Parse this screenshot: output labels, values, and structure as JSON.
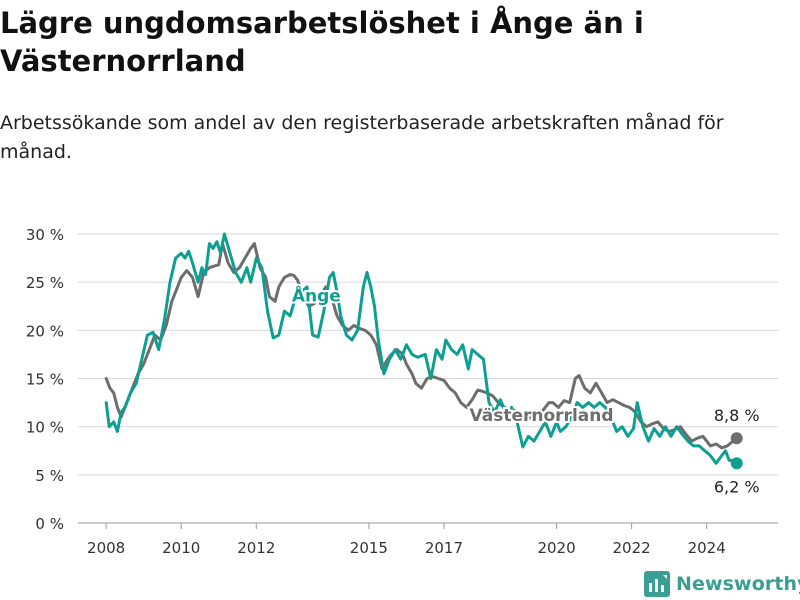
{
  "title": "Lägre ungdomsarbetslöshet i Ånge än i Västernorrland",
  "subtitle": "Arbetssökande som andel av den registerbaserade arbetskraften månad för månad.",
  "brand": "Newsworthy",
  "colors": {
    "ange": "#0e9f93",
    "vasternorrland": "#6d6d6d",
    "grid": "#d9d9d9",
    "brand": "#3a9e94"
  },
  "chart_data": {
    "type": "line",
    "title": "Lägre ungdomsarbetslöshet i Ånge än i Västernorrland",
    "subtitle": "Arbetssökande som andel av den registerbaserade arbetskraften månad för månad.",
    "y_unit": "%",
    "ylim": [
      0,
      30
    ],
    "y_ticks": [
      0,
      5,
      10,
      15,
      20,
      25,
      30
    ],
    "y_tick_labels": [
      "0 %",
      "5 %",
      "10 %",
      "15 %",
      "20 %",
      "25 %",
      "30 %"
    ],
    "x_ticks": [
      2008,
      2010,
      2012,
      2015,
      2017,
      2020,
      2022,
      2024
    ],
    "xlim": [
      2007.25,
      2025.9
    ],
    "grid": true,
    "legend": "inline labels",
    "end_labels": [
      "8,8 %",
      "6,2 %"
    ],
    "series": [
      {
        "name": "Västernorrland",
        "color": "#6d6d6d",
        "points": [
          [
            2008.0,
            15.0
          ],
          [
            2008.1,
            14.0
          ],
          [
            2008.2,
            13.5
          ],
          [
            2008.3,
            12.0
          ],
          [
            2008.4,
            11.0
          ],
          [
            2008.55,
            12.5
          ],
          [
            2008.7,
            14.0
          ],
          [
            2008.85,
            15.5
          ],
          [
            2009.0,
            16.5
          ],
          [
            2009.15,
            18.0
          ],
          [
            2009.3,
            19.5
          ],
          [
            2009.45,
            19.0
          ],
          [
            2009.6,
            20.5
          ],
          [
            2009.75,
            23.0
          ],
          [
            2009.9,
            24.5
          ],
          [
            2010.0,
            25.5
          ],
          [
            2010.15,
            26.2
          ],
          [
            2010.3,
            25.5
          ],
          [
            2010.45,
            23.5
          ],
          [
            2010.6,
            26.0
          ],
          [
            2010.75,
            26.5
          ],
          [
            2010.9,
            26.7
          ],
          [
            2011.0,
            26.8
          ],
          [
            2011.1,
            29.0
          ],
          [
            2011.25,
            27.0
          ],
          [
            2011.4,
            26.0
          ],
          [
            2011.55,
            26.5
          ],
          [
            2011.7,
            27.5
          ],
          [
            2011.85,
            28.5
          ],
          [
            2011.95,
            29.0
          ],
          [
            2012.1,
            26.5
          ],
          [
            2012.25,
            25.5
          ],
          [
            2012.35,
            23.5
          ],
          [
            2012.5,
            23.0
          ],
          [
            2012.6,
            24.5
          ],
          [
            2012.75,
            25.5
          ],
          [
            2012.9,
            25.8
          ],
          [
            2013.0,
            25.7
          ],
          [
            2013.1,
            25.2
          ],
          [
            2013.25,
            23.5
          ],
          [
            2013.4,
            22.5
          ],
          [
            2013.55,
            22.8
          ],
          [
            2013.7,
            23.5
          ],
          [
            2013.85,
            24.5
          ],
          [
            2014.0,
            23.5
          ],
          [
            2014.15,
            21.5
          ],
          [
            2014.3,
            20.5
          ],
          [
            2014.45,
            20.0
          ],
          [
            2014.6,
            20.5
          ],
          [
            2014.75,
            20.2
          ],
          [
            2014.9,
            20.0
          ],
          [
            2015.05,
            19.5
          ],
          [
            2015.2,
            18.5
          ],
          [
            2015.35,
            16.0
          ],
          [
            2015.5,
            17.0
          ],
          [
            2015.6,
            17.5
          ],
          [
            2015.75,
            18.0
          ],
          [
            2015.9,
            17.5
          ],
          [
            2016.0,
            16.5
          ],
          [
            2016.15,
            15.5
          ],
          [
            2016.25,
            14.5
          ],
          [
            2016.4,
            14.0
          ],
          [
            2016.55,
            15.0
          ],
          [
            2016.7,
            15.2
          ],
          [
            2016.85,
            15.0
          ],
          [
            2017.0,
            14.8
          ],
          [
            2017.15,
            14.0
          ],
          [
            2017.3,
            13.5
          ],
          [
            2017.45,
            12.5
          ],
          [
            2017.6,
            12.0
          ],
          [
            2017.75,
            12.8
          ],
          [
            2017.9,
            13.8
          ],
          [
            2018.0,
            13.7
          ],
          [
            2018.15,
            13.5
          ],
          [
            2018.3,
            13.2
          ],
          [
            2018.45,
            12.5
          ],
          [
            2018.6,
            12.0
          ],
          [
            2018.8,
            11.8
          ],
          [
            2019.0,
            11.5
          ],
          [
            2019.2,
            11.0
          ],
          [
            2019.4,
            10.8
          ],
          [
            2019.6,
            11.5
          ],
          [
            2019.8,
            12.5
          ],
          [
            2019.9,
            12.5
          ],
          [
            2020.05,
            12.0
          ],
          [
            2020.2,
            12.7
          ],
          [
            2020.35,
            12.5
          ],
          [
            2020.5,
            15.0
          ],
          [
            2020.6,
            15.3
          ],
          [
            2020.75,
            14.0
          ],
          [
            2020.9,
            13.5
          ],
          [
            2021.05,
            14.5
          ],
          [
            2021.2,
            13.5
          ],
          [
            2021.35,
            12.5
          ],
          [
            2021.5,
            12.8
          ],
          [
            2021.65,
            12.5
          ],
          [
            2021.8,
            12.2
          ],
          [
            2021.95,
            12.0
          ],
          [
            2022.1,
            11.5
          ],
          [
            2022.25,
            10.5
          ],
          [
            2022.4,
            10.0
          ],
          [
            2022.55,
            10.3
          ],
          [
            2022.7,
            10.5
          ],
          [
            2022.85,
            9.8
          ],
          [
            2023.0,
            9.5
          ],
          [
            2023.15,
            9.7
          ],
          [
            2023.3,
            10.0
          ],
          [
            2023.45,
            9.2
          ],
          [
            2023.6,
            8.5
          ],
          [
            2023.75,
            8.8
          ],
          [
            2023.9,
            9.0
          ],
          [
            2024.0,
            8.5
          ],
          [
            2024.1,
            8.0
          ],
          [
            2024.25,
            8.2
          ],
          [
            2024.4,
            7.8
          ],
          [
            2024.55,
            8.0
          ],
          [
            2024.7,
            8.5
          ],
          [
            2024.8,
            8.8
          ]
        ]
      },
      {
        "name": "Ånge",
        "color": "#0e9f93",
        "points": [
          [
            2008.0,
            12.5
          ],
          [
            2008.08,
            10.0
          ],
          [
            2008.2,
            10.5
          ],
          [
            2008.3,
            9.5
          ],
          [
            2008.4,
            11.5
          ],
          [
            2008.5,
            12.0
          ],
          [
            2008.65,
            13.5
          ],
          [
            2008.8,
            14.5
          ],
          [
            2008.95,
            17.0
          ],
          [
            2009.1,
            19.5
          ],
          [
            2009.25,
            19.8
          ],
          [
            2009.4,
            18.0
          ],
          [
            2009.55,
            21.0
          ],
          [
            2009.7,
            25.0
          ],
          [
            2009.85,
            27.5
          ],
          [
            2010.0,
            28.0
          ],
          [
            2010.1,
            27.5
          ],
          [
            2010.2,
            28.2
          ],
          [
            2010.3,
            27.0
          ],
          [
            2010.45,
            25.0
          ],
          [
            2010.55,
            26.5
          ],
          [
            2010.65,
            25.8
          ],
          [
            2010.75,
            29.0
          ],
          [
            2010.85,
            28.5
          ],
          [
            2010.95,
            29.2
          ],
          [
            2011.05,
            28.0
          ],
          [
            2011.15,
            30.0
          ],
          [
            2011.3,
            28.0
          ],
          [
            2011.45,
            26.0
          ],
          [
            2011.6,
            25.0
          ],
          [
            2011.75,
            26.5
          ],
          [
            2011.85,
            25.0
          ],
          [
            2012.0,
            27.5
          ],
          [
            2012.15,
            26.5
          ],
          [
            2012.3,
            22.0
          ],
          [
            2012.45,
            19.2
          ],
          [
            2012.6,
            19.5
          ],
          [
            2012.75,
            22.0
          ],
          [
            2012.9,
            21.5
          ],
          [
            2013.05,
            23.5
          ],
          [
            2013.2,
            24.0
          ],
          [
            2013.35,
            24.5
          ],
          [
            2013.5,
            19.5
          ],
          [
            2013.65,
            19.3
          ],
          [
            2013.8,
            22.0
          ],
          [
            2013.95,
            25.5
          ],
          [
            2014.05,
            26.0
          ],
          [
            2014.15,
            24.0
          ],
          [
            2014.25,
            21.5
          ],
          [
            2014.4,
            19.5
          ],
          [
            2014.55,
            19.0
          ],
          [
            2014.7,
            20.0
          ],
          [
            2014.85,
            24.5
          ],
          [
            2014.95,
            26.0
          ],
          [
            2015.05,
            24.5
          ],
          [
            2015.15,
            22.5
          ],
          [
            2015.25,
            19.0
          ],
          [
            2015.4,
            15.5
          ],
          [
            2015.55,
            17.0
          ],
          [
            2015.7,
            18.0
          ],
          [
            2015.85,
            17.0
          ],
          [
            2016.0,
            18.5
          ],
          [
            2016.15,
            17.5
          ],
          [
            2016.3,
            17.2
          ],
          [
            2016.5,
            17.5
          ],
          [
            2016.65,
            15.0
          ],
          [
            2016.8,
            18.0
          ],
          [
            2016.95,
            17.0
          ],
          [
            2017.05,
            19.0
          ],
          [
            2017.2,
            18.0
          ],
          [
            2017.35,
            17.5
          ],
          [
            2017.5,
            18.5
          ],
          [
            2017.65,
            16.0
          ],
          [
            2017.75,
            18.0
          ],
          [
            2017.9,
            17.5
          ],
          [
            2018.05,
            17.0
          ],
          [
            2018.2,
            12.5
          ],
          [
            2018.35,
            11.5
          ],
          [
            2018.5,
            12.8
          ],
          [
            2018.65,
            11.5
          ],
          [
            2018.8,
            12.0
          ],
          [
            2018.95,
            10.5
          ],
          [
            2019.1,
            7.9
          ],
          [
            2019.25,
            9.0
          ],
          [
            2019.4,
            8.5
          ],
          [
            2019.55,
            9.5
          ],
          [
            2019.7,
            10.5
          ],
          [
            2019.85,
            9.0
          ],
          [
            2020.0,
            10.5
          ],
          [
            2020.1,
            9.5
          ],
          [
            2020.25,
            10.0
          ],
          [
            2020.4,
            11.0
          ],
          [
            2020.55,
            12.5
          ],
          [
            2020.7,
            12.0
          ],
          [
            2020.85,
            12.5
          ],
          [
            2021.0,
            12.0
          ],
          [
            2021.15,
            12.5
          ],
          [
            2021.3,
            12.0
          ],
          [
            2021.45,
            11.0
          ],
          [
            2021.6,
            9.5
          ],
          [
            2021.75,
            10.0
          ],
          [
            2021.9,
            9.0
          ],
          [
            2022.05,
            9.8
          ],
          [
            2022.15,
            12.5
          ],
          [
            2022.3,
            10.0
          ],
          [
            2022.45,
            8.5
          ],
          [
            2022.6,
            9.8
          ],
          [
            2022.75,
            9.0
          ],
          [
            2022.9,
            10.0
          ],
          [
            2023.05,
            9.0
          ],
          [
            2023.2,
            10.0
          ],
          [
            2023.35,
            9.2
          ],
          [
            2023.5,
            8.5
          ],
          [
            2023.65,
            8.0
          ],
          [
            2023.8,
            8.0
          ],
          [
            2023.95,
            7.5
          ],
          [
            2024.1,
            7.0
          ],
          [
            2024.25,
            6.2
          ],
          [
            2024.4,
            7.0
          ],
          [
            2024.5,
            7.5
          ],
          [
            2024.6,
            6.5
          ],
          [
            2024.7,
            6.5
          ],
          [
            2024.8,
            6.2
          ]
        ]
      }
    ],
    "annotations": [
      {
        "text": "Ånge",
        "series": "Ånge"
      },
      {
        "text": "Västernorrland",
        "series": "Västernorrland"
      },
      {
        "text": "8,8 %",
        "series": "Västernorrland"
      },
      {
        "text": "6,2 %",
        "series": "Ånge"
      }
    ]
  }
}
